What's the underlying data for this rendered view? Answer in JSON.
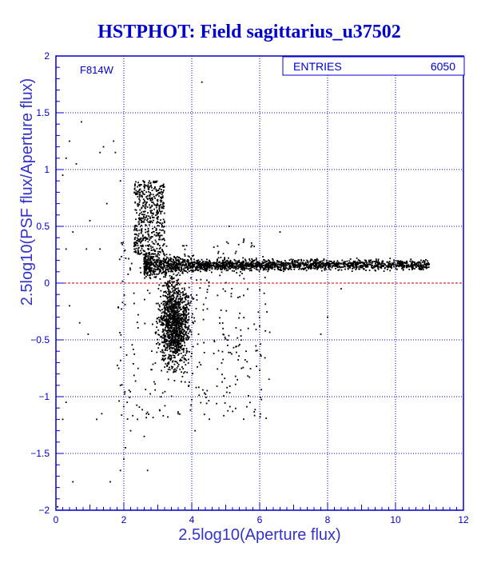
{
  "chart_data": {
    "type": "scatter",
    "title": "HSTPHOT: Field sagittarius_u37502",
    "xlabel": "2.5log10(Aperture flux)",
    "ylabel": "2.5log10(PSF flux/Aperture flux)",
    "xlim": [
      0,
      12
    ],
    "ylim": [
      -2,
      2
    ],
    "x_ticks": [
      0,
      2,
      4,
      6,
      8,
      10,
      12
    ],
    "y_ticks": [
      -2,
      -1.5,
      -1,
      -0.5,
      0,
      0.5,
      1,
      1.5,
      2
    ],
    "x_tick_labels": [
      "0",
      "2",
      "4",
      "6",
      "8",
      "10",
      "12"
    ],
    "y_tick_labels": [
      "−2",
      "−1.5",
      "−1",
      "−0.5",
      "0",
      "0.5",
      "1",
      "1.5",
      "2"
    ],
    "grid": true,
    "reference_line": {
      "y": 0,
      "color": "#cc0000",
      "style": "dashed"
    },
    "filter_label": "F814W",
    "stats": {
      "label": "ENTRIES",
      "value": "6050"
    },
    "entries": 6050,
    "point_color": "#000000",
    "series": [
      {
        "points": [
          [
            0.2,
            0.95
          ],
          [
            0.3,
            1.1
          ],
          [
            0.4,
            1.25
          ],
          [
            0.75,
            1.42
          ],
          [
            0.6,
            1.05
          ],
          [
            1.3,
            1.15
          ],
          [
            1.4,
            1.2
          ],
          [
            1.7,
            1.25
          ],
          [
            1.75,
            1.15
          ],
          [
            4.3,
            1.77
          ],
          [
            0.3,
            0.3
          ],
          [
            0.5,
            0.45
          ],
          [
            0.9,
            0.3
          ],
          [
            1.0,
            0.55
          ],
          [
            1.3,
            0.3
          ],
          [
            1.5,
            0.7
          ],
          [
            1.9,
            0.9
          ],
          [
            0.4,
            -0.2
          ],
          [
            0.7,
            -0.35
          ],
          [
            0.95,
            -0.45
          ],
          [
            0.2,
            -1.2
          ],
          [
            0.3,
            -1.05
          ],
          [
            1.2,
            -1.2
          ],
          [
            1.35,
            -1.15
          ],
          [
            0.5,
            -1.75
          ],
          [
            1.6,
            -1.75
          ],
          [
            1.9,
            -1.65
          ],
          [
            2.0,
            -1.55
          ],
          [
            2.05,
            -1.45
          ],
          [
            2.2,
            -1.3
          ],
          [
            1.85,
            -0.75
          ],
          [
            1.9,
            -0.9
          ],
          [
            2.1,
            -1.05
          ],
          [
            5.1,
            0.5
          ],
          [
            6.6,
            0.45
          ],
          [
            7.8,
            -0.45
          ],
          [
            8.0,
            -0.3
          ],
          [
            5.6,
            -0.6
          ],
          [
            3.6,
            -1.15
          ],
          [
            4.1,
            -1.3
          ],
          [
            2.7,
            -1.65
          ],
          [
            0.05,
            -1.97
          ],
          [
            8.4,
            -0.05
          ],
          [
            7.3,
            0.2
          ],
          [
            2.6,
            -1.35
          ]
        ]
      }
    ]
  }
}
